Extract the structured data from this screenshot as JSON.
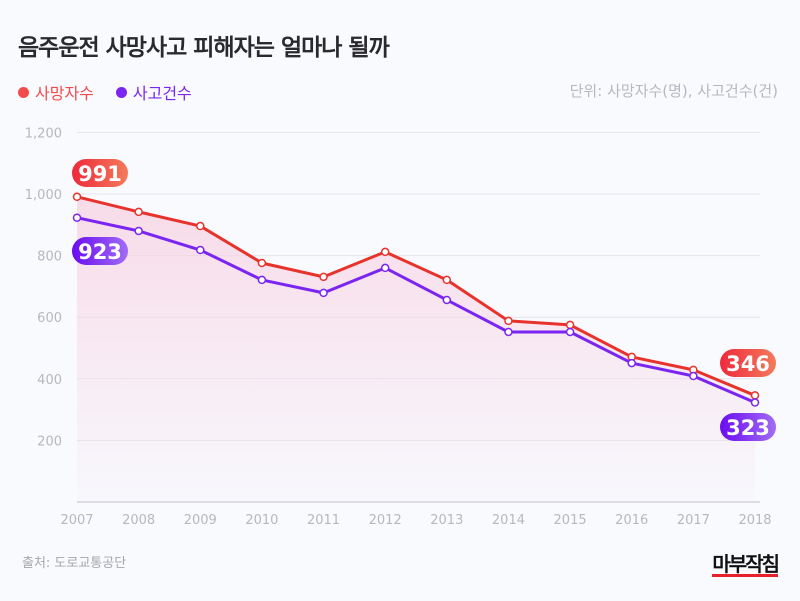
{
  "title": "음주운전 사망사고 피해자는 얼마나 될까",
  "unit_note": "단위: 사망자수(명), 사고건수(건)",
  "source": "출처: 도로교통공단",
  "logo": "마부작침",
  "chart_data": {
    "type": "line",
    "title": "음주운전 사망사고 피해자는 얼마나 될까",
    "categories": [
      "2007",
      "2008",
      "2009",
      "2010",
      "2011",
      "2012",
      "2013",
      "2014",
      "2015",
      "2016",
      "2017",
      "2018"
    ],
    "series": [
      {
        "name": "사망자수",
        "color": "#e8322c",
        "values": [
          991,
          942,
          896,
          776,
          731,
          812,
          721,
          588,
          575,
          471,
          429,
          346
        ]
      },
      {
        "name": "사고건수",
        "color": "#7a25f0",
        "values": [
          923,
          880,
          818,
          721,
          679,
          760,
          656,
          552,
          552,
          451,
          409,
          323
        ]
      }
    ],
    "end_labels": [
      {
        "series": 0,
        "first": "991",
        "last": "346"
      },
      {
        "series": 1,
        "first": "923",
        "last": "323"
      }
    ],
    "yticks": [
      "200",
      "400",
      "600",
      "800",
      "1,000",
      "1,200"
    ],
    "ytick_values": [
      200,
      400,
      600,
      800,
      1000,
      1200
    ],
    "ylim": [
      0,
      1200
    ],
    "grid": true,
    "legend": "top-left"
  }
}
